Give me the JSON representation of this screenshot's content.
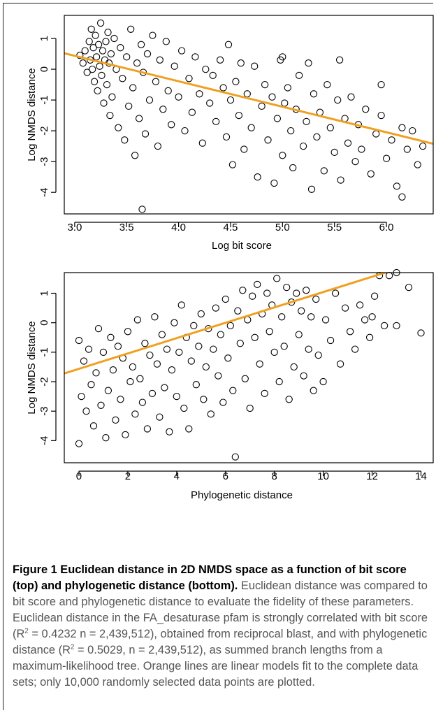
{
  "caption": {
    "title": "Figure 1 Euclidean distance in 2D NMDS space as a function of bit score (top) and phylogenetic distance (bottom).",
    "text_1": " Euclidean distance was compared to bit score and phylogenetic distance to evaluate the fidelity of these parameters. Euclidean distance in the FA_desaturase pfam is strongly correlated with bit score ",
    "sup": "2",
    "text_2": " = 0.4232 n = 2,439,512), obtained from reciprocal blast, and with phylogenetic distance ",
    "text_3": " = 0.5029, n = 2,439,512), as summed branch lengths from a maximum-likelihood tree. Orange lines are linear models fit to the complete data sets; only 10,000 randomly selected data points are plotted."
  },
  "colors": {
    "fit_line": "#f0a020",
    "points": "#000000",
    "axis": "#000000"
  },
  "chart_data": [
    {
      "type": "scatter",
      "title": "",
      "xlabel": "Log bit score",
      "ylabel": "Log NMDS distance",
      "xlim": [
        2.9,
        6.45
      ],
      "ylim": [
        -4.7,
        1.75
      ],
      "xticks": [
        3.0,
        3.5,
        4.0,
        4.5,
        5.0,
        5.5,
        6.0
      ],
      "xtick_labels": [
        "3.0",
        "3.5",
        "4.0",
        "4.5",
        "5.0",
        "5.5",
        "6.0"
      ],
      "yticks": [
        -4,
        -3,
        -2,
        -1,
        0,
        1
      ],
      "ytick_labels": [
        "-4",
        "-3",
        "-2",
        "-1",
        "0",
        "1"
      ],
      "fit_line": {
        "x": [
          2.9,
          6.45
        ],
        "y": [
          0.52,
          -2.42
        ]
      },
      "points": [
        [
          3.05,
          0.45
        ],
        [
          3.08,
          0.2
        ],
        [
          3.1,
          0.6
        ],
        [
          3.12,
          -0.1
        ],
        [
          3.14,
          0.9
        ],
        [
          3.15,
          0.3
        ],
        [
          3.16,
          1.3
        ],
        [
          3.17,
          0.0
        ],
        [
          3.18,
          0.7
        ],
        [
          3.19,
          -0.4
        ],
        [
          3.2,
          1.1
        ],
        [
          3.21,
          0.4
        ],
        [
          3.22,
          -0.7
        ],
        [
          3.23,
          0.8
        ],
        [
          3.24,
          0.1
        ],
        [
          3.25,
          1.5
        ],
        [
          3.26,
          -0.2
        ],
        [
          3.27,
          0.6
        ],
        [
          3.28,
          -1.1
        ],
        [
          3.29,
          0.3
        ],
        [
          3.3,
          0.9
        ],
        [
          3.31,
          -0.5
        ],
        [
          3.32,
          1.2
        ],
        [
          3.33,
          0.2
        ],
        [
          3.34,
          -1.5
        ],
        [
          3.35,
          0.5
        ],
        [
          3.36,
          -0.9
        ],
        [
          3.38,
          1.0
        ],
        [
          3.4,
          0.0
        ],
        [
          3.42,
          -1.9
        ],
        [
          3.44,
          0.7
        ],
        [
          3.46,
          -0.3
        ],
        [
          3.48,
          -2.3
        ],
        [
          3.5,
          0.4
        ],
        [
          3.52,
          -1.2
        ],
        [
          3.54,
          1.3
        ],
        [
          3.56,
          -0.6
        ],
        [
          3.58,
          -2.8
        ],
        [
          3.6,
          0.2
        ],
        [
          3.62,
          -1.6
        ],
        [
          3.64,
          0.8
        ],
        [
          3.65,
          -4.55
        ],
        [
          3.66,
          -0.1
        ],
        [
          3.68,
          -2.1
        ],
        [
          3.7,
          0.5
        ],
        [
          3.72,
          -1.0
        ],
        [
          3.75,
          1.1
        ],
        [
          3.78,
          -0.4
        ],
        [
          3.8,
          -2.5
        ],
        [
          3.82,
          0.3
        ],
        [
          3.85,
          -1.3
        ],
        [
          3.88,
          0.9
        ],
        [
          3.9,
          -0.7
        ],
        [
          3.93,
          -1.8
        ],
        [
          3.96,
          0.1
        ],
        [
          4.0,
          -0.9
        ],
        [
          4.03,
          0.6
        ],
        [
          4.06,
          -2.0
        ],
        [
          4.1,
          -0.3
        ],
        [
          4.13,
          -1.4
        ],
        [
          4.16,
          0.4
        ],
        [
          4.2,
          -0.8
        ],
        [
          4.23,
          -2.4
        ],
        [
          4.26,
          0.0
        ],
        [
          4.3,
          -1.1
        ],
        [
          4.33,
          -0.2
        ],
        [
          4.36,
          -1.7
        ],
        [
          4.4,
          0.3
        ],
        [
          4.43,
          -0.6
        ],
        [
          4.46,
          -2.2
        ],
        [
          4.48,
          0.8
        ],
        [
          4.5,
          -1.0
        ],
        [
          4.52,
          -3.1
        ],
        [
          4.55,
          -0.4
        ],
        [
          4.58,
          -1.5
        ],
        [
          4.6,
          0.2
        ],
        [
          4.63,
          -2.6
        ],
        [
          4.66,
          -0.8
        ],
        [
          4.7,
          -1.9
        ],
        [
          4.73,
          0.1
        ],
        [
          4.76,
          -3.5
        ],
        [
          4.8,
          -1.2
        ],
        [
          4.83,
          -0.5
        ],
        [
          4.86,
          -2.3
        ],
        [
          4.9,
          -0.9
        ],
        [
          4.92,
          -3.7
        ],
        [
          4.95,
          -1.6
        ],
        [
          4.98,
          0.3
        ],
        [
          5.0,
          -2.8
        ],
        [
          5.02,
          -1.1
        ],
        [
          5.05,
          -0.6
        ],
        [
          5.08,
          -2.0
        ],
        [
          5.1,
          -3.2
        ],
        [
          5.13,
          -1.3
        ],
        [
          5.16,
          -0.2
        ],
        [
          5.2,
          -2.5
        ],
        [
          5.23,
          -1.7
        ],
        [
          5.25,
          0.2
        ],
        [
          5.28,
          -3.9
        ],
        [
          5.3,
          -0.8
        ],
        [
          5.33,
          -2.2
        ],
        [
          5.36,
          -1.4
        ],
        [
          5.4,
          -3.3
        ],
        [
          5.43,
          -0.5
        ],
        [
          5.46,
          -1.9
        ],
        [
          5.5,
          -2.7
        ],
        [
          5.53,
          -1.0
        ],
        [
          5.56,
          -3.6
        ],
        [
          5.6,
          -1.6
        ],
        [
          5.63,
          -2.4
        ],
        [
          5.66,
          -0.9
        ],
        [
          5.7,
          -3.0
        ],
        [
          5.73,
          -1.8
        ],
        [
          5.76,
          -2.6
        ],
        [
          5.8,
          -1.3
        ],
        [
          5.85,
          -3.4
        ],
        [
          5.9,
          -2.1
        ],
        [
          5.95,
          -1.5
        ],
        [
          6.0,
          -2.9
        ],
        [
          6.05,
          -2.3
        ],
        [
          6.1,
          -3.8
        ],
        [
          6.15,
          -1.9
        ],
        [
          6.15,
          -4.15
        ],
        [
          6.2,
          -2.6
        ],
        [
          6.25,
          -2.0
        ],
        [
          6.3,
          -3.1
        ],
        [
          6.35,
          -2.5
        ],
        [
          5.95,
          -0.5
        ],
        [
          5.55,
          0.3
        ],
        [
          5.0,
          0.4
        ]
      ]
    },
    {
      "type": "scatter",
      "title": "",
      "xlabel": "Phylogenetic distance",
      "ylabel": "Log NMDS distance",
      "xlim": [
        -0.6,
        14.5
      ],
      "ylim": [
        -4.75,
        1.7
      ],
      "xticks": [
        0,
        2,
        4,
        6,
        8,
        10,
        12,
        14
      ],
      "xtick_labels": [
        "0",
        "2",
        "4",
        "6",
        "8",
        "10",
        "12",
        "14"
      ],
      "yticks": [
        -4,
        -3,
        -2,
        -1,
        0,
        1
      ],
      "ytick_labels": [
        "-4",
        "-3",
        "-2",
        "-1",
        "0",
        "1"
      ],
      "fit_line": {
        "x": [
          -0.6,
          13.3
        ],
        "y": [
          -1.72,
          1.9
        ]
      },
      "points": [
        [
          0.0,
          -4.1
        ],
        [
          0.0,
          -0.6
        ],
        [
          0.1,
          -2.5
        ],
        [
          0.2,
          -1.3
        ],
        [
          0.3,
          -3.0
        ],
        [
          0.4,
          -0.9
        ],
        [
          0.5,
          -2.1
        ],
        [
          0.6,
          -3.5
        ],
        [
          0.7,
          -1.7
        ],
        [
          0.8,
          -0.2
        ],
        [
          0.9,
          -2.8
        ],
        [
          1.0,
          -1.0
        ],
        [
          1.1,
          -3.9
        ],
        [
          1.2,
          -2.3
        ],
        [
          1.3,
          -0.5
        ],
        [
          1.4,
          -1.6
        ],
        [
          1.5,
          -3.3
        ],
        [
          1.6,
          -0.8
        ],
        [
          1.7,
          -2.6
        ],
        [
          1.8,
          -1.2
        ],
        [
          1.9,
          -3.8
        ],
        [
          2.0,
          -0.3
        ],
        [
          2.1,
          -2.0
        ],
        [
          2.2,
          -1.5
        ],
        [
          2.3,
          -3.1
        ],
        [
          2.4,
          0.1
        ],
        [
          2.5,
          -1.9
        ],
        [
          2.6,
          -2.7
        ],
        [
          2.7,
          -0.7
        ],
        [
          2.8,
          -3.6
        ],
        [
          2.9,
          -1.1
        ],
        [
          3.0,
          -2.4
        ],
        [
          3.1,
          0.2
        ],
        [
          3.2,
          -1.4
        ],
        [
          3.3,
          -3.2
        ],
        [
          3.4,
          -0.4
        ],
        [
          3.5,
          -2.2
        ],
        [
          3.6,
          -0.9
        ],
        [
          3.7,
          -3.7
        ],
        [
          3.8,
          -1.6
        ],
        [
          3.9,
          0.0
        ],
        [
          4.0,
          -2.5
        ],
        [
          4.1,
          -1.0
        ],
        [
          4.2,
          0.6
        ],
        [
          4.3,
          -2.9
        ],
        [
          4.4,
          -0.5
        ],
        [
          4.5,
          -3.6
        ],
        [
          4.6,
          -1.3
        ],
        [
          4.7,
          -0.1
        ],
        [
          4.8,
          -2.1
        ],
        [
          4.9,
          -0.8
        ],
        [
          5.0,
          0.3
        ],
        [
          5.1,
          -2.6
        ],
        [
          5.2,
          -1.5
        ],
        [
          5.3,
          -0.2
        ],
        [
          5.4,
          -3.1
        ],
        [
          5.5,
          -0.9
        ],
        [
          5.6,
          0.5
        ],
        [
          5.7,
          -1.8
        ],
        [
          5.8,
          -0.4
        ],
        [
          5.9,
          -2.7
        ],
        [
          6.0,
          0.8
        ],
        [
          6.1,
          -1.2
        ],
        [
          6.2,
          -0.1
        ],
        [
          6.3,
          -2.3
        ],
        [
          6.4,
          -4.55
        ],
        [
          6.5,
          0.4
        ],
        [
          6.6,
          -0.7
        ],
        [
          6.7,
          1.1
        ],
        [
          6.8,
          -1.9
        ],
        [
          6.9,
          0.1
        ],
        [
          7.0,
          -2.9
        ],
        [
          7.1,
          0.9
        ],
        [
          7.2,
          -0.5
        ],
        [
          7.3,
          1.3
        ],
        [
          7.4,
          -1.4
        ],
        [
          7.5,
          0.3
        ],
        [
          7.6,
          -2.4
        ],
        [
          7.7,
          1.0
        ],
        [
          7.8,
          -0.3
        ],
        [
          7.9,
          0.6
        ],
        [
          8.0,
          -1.0
        ],
        [
          8.1,
          1.5
        ],
        [
          8.2,
          -2.0
        ],
        [
          8.3,
          0.2
        ],
        [
          8.4,
          -0.8
        ],
        [
          8.5,
          1.2
        ],
        [
          8.6,
          -2.6
        ],
        [
          8.7,
          0.7
        ],
        [
          8.8,
          -1.5
        ],
        [
          8.9,
          1.0
        ],
        [
          9.0,
          -0.4
        ],
        [
          9.1,
          0.4
        ],
        [
          9.2,
          -1.8
        ],
        [
          9.3,
          1.1
        ],
        [
          9.4,
          -0.9
        ],
        [
          9.5,
          0.2
        ],
        [
          9.6,
          -2.3
        ],
        [
          9.7,
          0.8
        ],
        [
          9.8,
          -1.1
        ],
        [
          10.0,
          -2.0
        ],
        [
          10.1,
          0.1
        ],
        [
          10.3,
          -0.6
        ],
        [
          10.5,
          1.0
        ],
        [
          10.7,
          -1.4
        ],
        [
          10.9,
          0.5
        ],
        [
          11.1,
          -0.3
        ],
        [
          11.3,
          -0.9
        ],
        [
          11.5,
          0.6
        ],
        [
          11.7,
          0.1
        ],
        [
          11.9,
          -0.5
        ],
        [
          12.1,
          0.9
        ],
        [
          12.3,
          1.6
        ],
        [
          12.5,
          -0.1
        ],
        [
          12.7,
          1.6
        ],
        [
          13.0,
          1.7
        ],
        [
          13.0,
          -0.1
        ],
        [
          13.5,
          1.2
        ],
        [
          14.0,
          -0.35
        ],
        [
          12.0,
          0.2
        ]
      ]
    }
  ]
}
